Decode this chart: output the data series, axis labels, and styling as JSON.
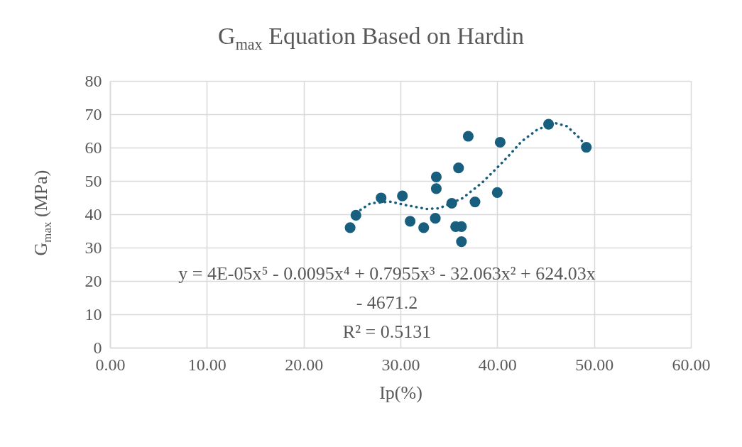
{
  "chart_data": {
    "type": "scatter",
    "title": "G$_{max}$ Equation Based on Hardin",
    "xlabel": "Ip(%)",
    "ylabel": "G$_{max}$ (MPa)",
    "xlim": [
      0,
      60
    ],
    "ylim": [
      0,
      80
    ],
    "xticks": [
      {
        "value": 0,
        "label": "0.00"
      },
      {
        "value": 10,
        "label": "10.00"
      },
      {
        "value": 20,
        "label": "20.00"
      },
      {
        "value": 30,
        "label": "30.00"
      },
      {
        "value": 40,
        "label": "40.00"
      },
      {
        "value": 50,
        "label": "50.00"
      },
      {
        "value": 60,
        "label": "60.00"
      }
    ],
    "yticks": [
      0,
      10,
      20,
      30,
      40,
      50,
      60,
      70,
      80
    ],
    "grid": true,
    "marker": "circle",
    "series": [
      {
        "color": "#175e7f",
        "x": [
          24.8,
          25.4,
          28.0,
          30.2,
          31.0,
          32.4,
          33.6,
          33.7,
          33.7,
          35.3,
          35.7,
          36.3,
          36.3,
          36.0,
          37.0,
          37.7,
          40.0,
          40.3,
          45.3,
          49.2
        ],
        "values": [
          36.0,
          39.7,
          44.9,
          45.5,
          37.9,
          36.0,
          38.8,
          47.7,
          51.2,
          43.3,
          36.3,
          36.3,
          31.8,
          53.9,
          63.4,
          43.7,
          46.5,
          61.6,
          67.0,
          60.1
        ]
      },
      {
        "type": "line",
        "color": "#175e7f",
        "line_style": "dotted",
        "marker": "none",
        "x": [
          25.4,
          26.9,
          28.9,
          30.8,
          32.7,
          34.0,
          36.4,
          38.4,
          39.8,
          41.2,
          42.5,
          44.1,
          45.9,
          47.2,
          48.6,
          49.2
        ],
        "values": [
          40.4,
          43.3,
          43.8,
          42.6,
          41.6,
          41.8,
          44.8,
          49.4,
          53.4,
          57.6,
          61.8,
          65.3,
          67.4,
          66.4,
          62.6,
          60.0
        ]
      }
    ],
    "annotations": [
      "y = 4E-05x⁵ - 0.0095x⁴ + 0.7955x³ - 32.063x² + 624.03x - 4671.2",
      "R² = 0.5131"
    ]
  }
}
